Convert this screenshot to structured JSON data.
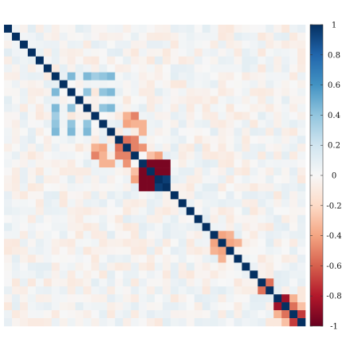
{
  "chart_data": {
    "type": "heatmap",
    "title": "",
    "xlabel": "",
    "ylabel": "",
    "n": 38,
    "value_range": [
      -1,
      1
    ],
    "diagonal_value": 1,
    "colorbar": {
      "position": "right",
      "ticks": [
        1,
        0.8,
        0.6,
        0.4,
        0.2,
        0,
        -0.2,
        -0.4,
        -0.6,
        -0.8,
        -1
      ],
      "tick_labels": [
        "1",
        "0.8",
        "0.6",
        "0.4",
        "0.2",
        "0",
        "-0.2",
        "-0.4",
        "-0.6",
        "-0.8",
        "-1"
      ]
    },
    "notable_correlations": [
      {
        "row": 8,
        "col": 6,
        "value": 0.45
      },
      {
        "row": 10,
        "col": 6,
        "value": 0.45
      },
      {
        "row": 8,
        "col": 10,
        "value": 0.45
      },
      {
        "row": 10,
        "col": 8,
        "value": 0.4
      },
      {
        "row": 12,
        "col": 6,
        "value": 0.4
      },
      {
        "row": 12,
        "col": 8,
        "value": 0.4
      },
      {
        "row": 12,
        "col": 10,
        "value": 0.4
      },
      {
        "row": 11,
        "col": 6,
        "value": 0.35
      },
      {
        "row": 13,
        "col": 6,
        "value": 0.45
      },
      {
        "row": 13,
        "col": 8,
        "value": 0.45
      },
      {
        "row": 13,
        "col": 10,
        "value": 0.45
      },
      {
        "row": 15,
        "col": 14,
        "value": -0.55
      },
      {
        "row": 16,
        "col": 14,
        "value": -0.5
      },
      {
        "row": 15,
        "col": 12,
        "value": -0.4
      },
      {
        "row": 15,
        "col": 11,
        "value": -0.35
      },
      {
        "row": 16,
        "col": 11,
        "value": -0.5
      },
      {
        "row": 17,
        "col": 12,
        "value": -0.35
      },
      {
        "row": 17,
        "col": 13,
        "value": -0.35
      },
      {
        "row": 16,
        "col": 15,
        "value": -0.5
      },
      {
        "row": 16,
        "col": 12,
        "value": -0.35
      },
      {
        "row": 17,
        "col": 15,
        "value": -0.45
      },
      {
        "row": 19,
        "col": 18,
        "value": -0.95
      },
      {
        "row": 19,
        "col": 17,
        "value": -0.95
      },
      {
        "row": 18,
        "col": 17,
        "value": -0.95
      },
      {
        "row": 20,
        "col": 17,
        "value": -0.95
      },
      {
        "row": 20,
        "col": 18,
        "value": -0.95
      },
      {
        "row": 20,
        "col": 19,
        "value": 0.95
      },
      {
        "row": 19,
        "col": 16,
        "value": -0.4
      },
      {
        "row": 18,
        "col": 16,
        "value": -0.3
      },
      {
        "row": 27,
        "col": 26,
        "value": -0.4
      },
      {
        "row": 28,
        "col": 26,
        "value": -0.35
      },
      {
        "row": 28,
        "col": 27,
        "value": -0.4
      },
      {
        "row": 29,
        "col": 27,
        "value": -0.35
      },
      {
        "row": 33,
        "col": 32,
        "value": -0.55
      },
      {
        "row": 35,
        "col": 34,
        "value": -0.85
      },
      {
        "row": 36,
        "col": 35,
        "value": -0.55
      },
      {
        "row": 37,
        "col": 36,
        "value": -0.7
      },
      {
        "row": 36,
        "col": 34,
        "value": -0.35
      },
      {
        "row": 37,
        "col": 35,
        "value": -0.3
      }
    ]
  }
}
